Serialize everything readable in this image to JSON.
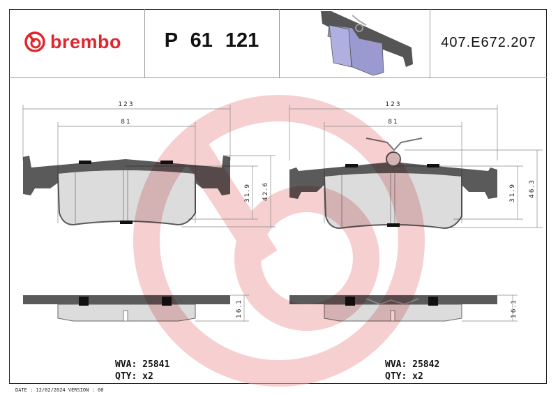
{
  "header": {
    "brand": "brembo",
    "part_number": "P 61 121",
    "reference": "407.E672.207"
  },
  "left_pad": {
    "width_overall": "123",
    "width_friction": "81",
    "height_friction": "31.9",
    "height_overall": "42.6",
    "thickness": "16.1",
    "wva_label": "WVA: 25841",
    "qty_label": "QTY: x2"
  },
  "right_pad": {
    "width_overall": "123",
    "width_friction": "81",
    "height_friction": "31.9",
    "height_overall": "46.3",
    "thickness": "16.1",
    "wva_label": "WVA: 25842",
    "qty_label": "QTY: x2"
  },
  "footer": {
    "date_version": "DATE : 12/02/2024 VERSION : 00"
  },
  "colors": {
    "brand_red": "#e0262d",
    "backing_plate": "#5a5a5a",
    "friction": "#dcdcdc",
    "watermark": "#f4c4c6"
  }
}
